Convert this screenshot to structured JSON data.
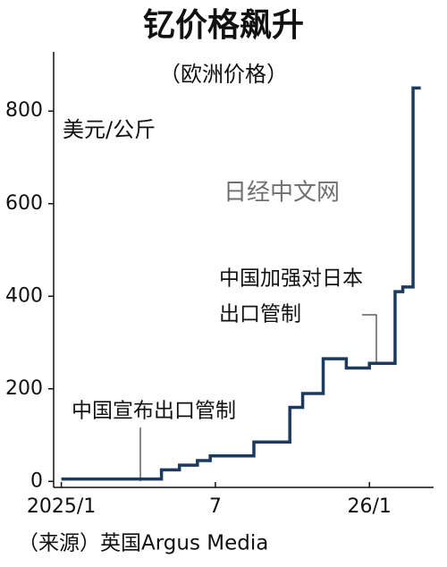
{
  "chart_data": {
    "type": "line",
    "title": "钇价格飙升",
    "subtitle": "（欧洲价格）",
    "y_label": "美元/公斤",
    "source": "（来源）英国Argus Media",
    "watermark": "日经中文网",
    "annotations": [
      {
        "lines": [
          "中国宣布出口管制"
        ]
      },
      {
        "lines": [
          "中国加强对日本",
          "出口管制"
        ]
      }
    ],
    "x": [
      0,
      3.9,
      3.9,
      4.6,
      4.6,
      5.3,
      5.3,
      5.8,
      5.8,
      7.5,
      7.5,
      8.9,
      8.9,
      9.4,
      9.4,
      10.2,
      10.2,
      11.1,
      11.1,
      12.0,
      12.0,
      13.0,
      13.0,
      13.3,
      13.3,
      13.7,
      13.7,
      14.0
    ],
    "series": [
      {
        "color": "#1c3a5e",
        "values": [
          5,
          5,
          25,
          25,
          35,
          35,
          45,
          45,
          55,
          55,
          85,
          85,
          160,
          160,
          190,
          190,
          265,
          265,
          245,
          245,
          255,
          255,
          410,
          410,
          420,
          420,
          850,
          850
        ]
      }
    ],
    "xlim": [
      -0.3,
      14.5
    ],
    "xticks": [
      {
        "value": 0,
        "label": "2025/1"
      },
      {
        "value": 6,
        "label": "7"
      },
      {
        "value": 12,
        "label": "26/1"
      }
    ],
    "ylim": [
      -13,
      928
    ],
    "yticks": [
      0,
      200,
      400,
      600,
      800
    ],
    "grid": false
  }
}
